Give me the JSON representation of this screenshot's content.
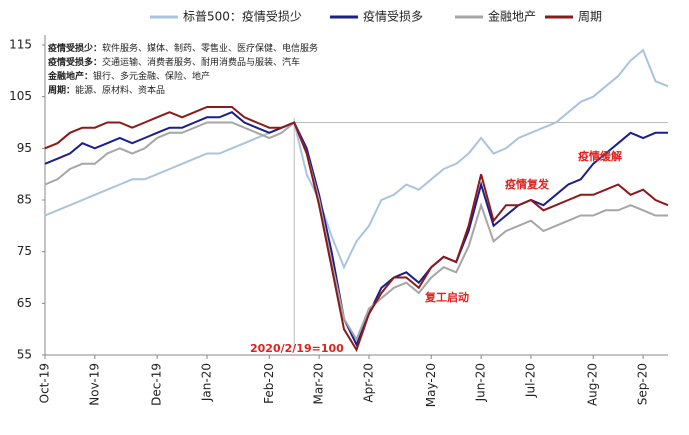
{
  "chart_data": {
    "type": "line",
    "categories": [
      "Oct-19",
      null,
      null,
      null,
      "Nov-19",
      null,
      null,
      null,
      null,
      "Dec-19",
      null,
      null,
      null,
      "Jan-20",
      null,
      null,
      null,
      null,
      "Feb-20",
      null,
      null,
      null,
      "Mar-20",
      null,
      null,
      null,
      "Apr-20",
      null,
      null,
      null,
      null,
      "May-20",
      null,
      null,
      null,
      "Jun-20",
      null,
      null,
      null,
      "Jul-20",
      null,
      null,
      null,
      null,
      "Aug-20",
      null,
      null,
      null,
      "Sep-20",
      null,
      null
    ],
    "series": [
      {
        "name": "标普500：疫情受损少",
        "color": "#a9c4e0",
        "values": [
          82,
          83,
          84,
          85,
          86,
          87,
          88,
          89,
          89,
          90,
          91,
          92,
          93,
          94,
          94,
          95,
          96,
          97,
          98,
          99,
          100,
          90,
          85,
          78,
          72,
          77,
          80,
          85,
          86,
          88,
          87,
          89,
          91,
          92,
          94,
          97,
          94,
          95,
          97,
          98,
          99,
          100,
          102,
          104,
          105,
          107,
          109,
          112,
          114,
          108,
          107
        ]
      },
      {
        "name": "疫情受损多",
        "color": "#1a1f8c",
        "values": [
          92,
          93,
          94,
          96,
          95,
          96,
          97,
          96,
          97,
          98,
          99,
          99,
          100,
          101,
          101,
          102,
          100,
          99,
          98,
          99,
          100,
          95,
          86,
          75,
          62,
          57,
          63,
          68,
          70,
          71,
          69,
          72,
          74,
          73,
          79,
          88,
          80,
          82,
          84,
          85,
          84,
          86,
          88,
          89,
          92,
          94,
          96,
          98,
          97,
          98,
          98
        ]
      },
      {
        "name": "金融地产",
        "color": "#a6a6a6",
        "values": [
          88,
          89,
          91,
          92,
          92,
          94,
          95,
          94,
          95,
          97,
          98,
          98,
          99,
          100,
          100,
          100,
          99,
          98,
          97,
          98,
          100,
          94,
          85,
          73,
          62,
          58,
          64,
          66,
          68,
          69,
          67,
          70,
          72,
          71,
          76,
          84,
          77,
          79,
          80,
          81,
          79,
          80,
          81,
          82,
          82,
          83,
          83,
          84,
          83,
          82,
          82
        ]
      },
      {
        "name": "周期",
        "color": "#8b1a1a",
        "values": [
          95,
          96,
          98,
          99,
          99,
          100,
          100,
          99,
          100,
          101,
          102,
          101,
          102,
          103,
          103,
          103,
          101,
          100,
          99,
          99,
          100,
          94,
          84,
          72,
          60,
          56,
          63,
          67,
          70,
          70,
          68,
          72,
          74,
          73,
          80,
          90,
          81,
          84,
          84,
          85,
          83,
          84,
          85,
          86,
          86,
          87,
          88,
          86,
          87,
          85,
          84
        ]
      }
    ],
    "ylim": [
      55,
      115
    ],
    "yticks": [
      55,
      65,
      75,
      85,
      95,
      105,
      115
    ],
    "notes": [
      {
        "label": "疫情受损少：",
        "text": "软件服务、媒体、制药、零售业、医疗保健、电信服务"
      },
      {
        "label": "疫情受损多：",
        "text": "交通运输、消费者服务、耐用消费品与服装、汽车"
      },
      {
        "label": "金融地产：",
        "text": "银行、多元金融、保险、地产"
      },
      {
        "label": "周期：",
        "text": "能源、原材料、资本品"
      }
    ],
    "annotations": [
      "2020/2/19=100",
      "复工启动",
      "疫情复发",
      "疫情缓解"
    ]
  }
}
